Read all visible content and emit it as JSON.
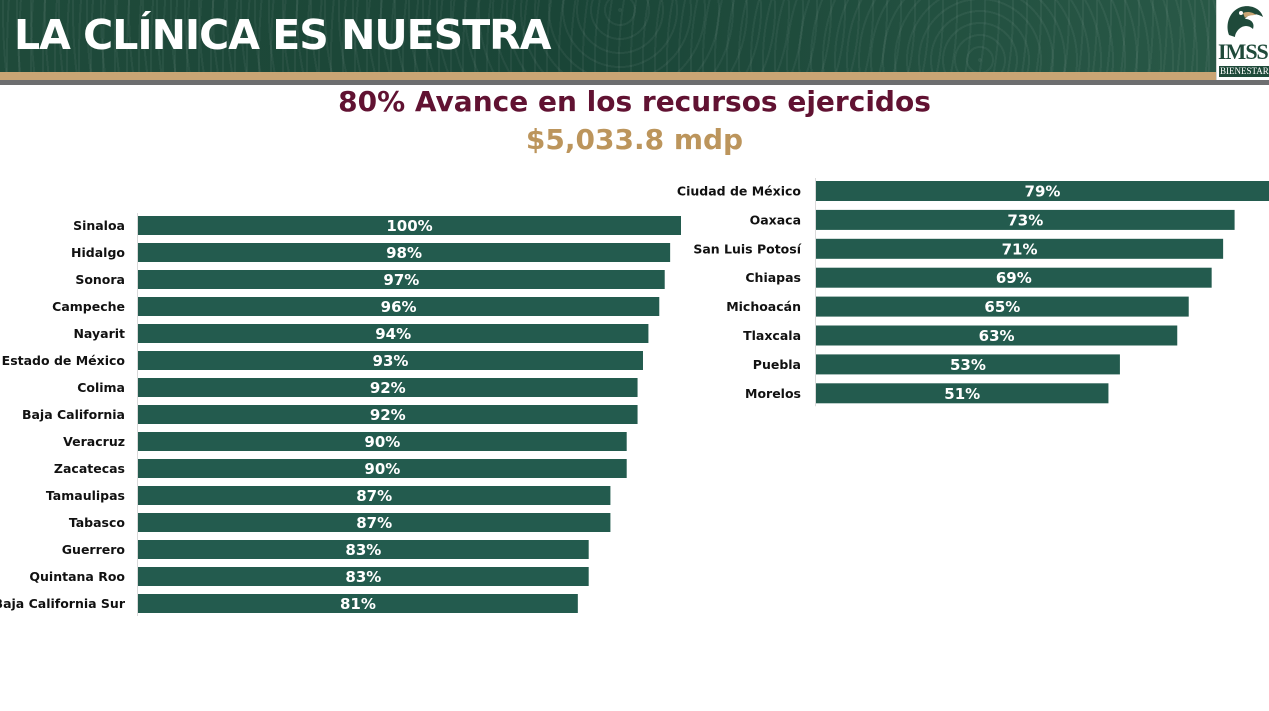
{
  "header": {
    "title": "LA CLÍNICA ES NUESTRA",
    "logo_text": "IMSS",
    "logo_sub": "BIENESTAR"
  },
  "headline": "80% Avance en los recursos ejercidos",
  "subheadline": "$5,033.8 mdp",
  "colors": {
    "banner": "#1f4a3a",
    "gold": "#c9a574",
    "bar": "#235b4e",
    "headline": "#611232",
    "subheadline": "#bc955c"
  },
  "chart_data": [
    {
      "type": "bar",
      "orientation": "horizontal",
      "categories": [
        "Sinaloa",
        "Hidalgo",
        "Sonora",
        "Campeche",
        "Nayarit",
        "Estado de México",
        "Colima",
        "Baja California",
        "Veracruz",
        "Zacatecas",
        "Tamaulipas",
        "Tabasco",
        "Guerrero",
        "Quintana Roo",
        "Baja California Sur"
      ],
      "values": [
        100,
        98,
        97,
        96,
        94,
        93,
        92,
        92,
        90,
        90,
        87,
        87,
        83,
        83,
        81
      ],
      "labels": [
        "100%",
        "98%",
        "97%",
        "96%",
        "94%",
        "93%",
        "92%",
        "92%",
        "90%",
        "90%",
        "87%",
        "87%",
        "83%",
        "83%",
        "81%"
      ],
      "xlim": [
        0,
        100
      ],
      "unit": "%"
    },
    {
      "type": "bar",
      "orientation": "horizontal",
      "categories": [
        "Ciudad de México",
        "Oaxaca",
        "San Luis Potosí",
        "Chiapas",
        "Michoacán",
        "Tlaxcala",
        "Puebla",
        "Morelos"
      ],
      "values": [
        79,
        73,
        71,
        69,
        65,
        63,
        53,
        51
      ],
      "labels": [
        "79%",
        "73%",
        "71%",
        "69%",
        "65%",
        "63%",
        "53%",
        "51%"
      ],
      "xlim": [
        0,
        79
      ],
      "unit": "%"
    }
  ]
}
